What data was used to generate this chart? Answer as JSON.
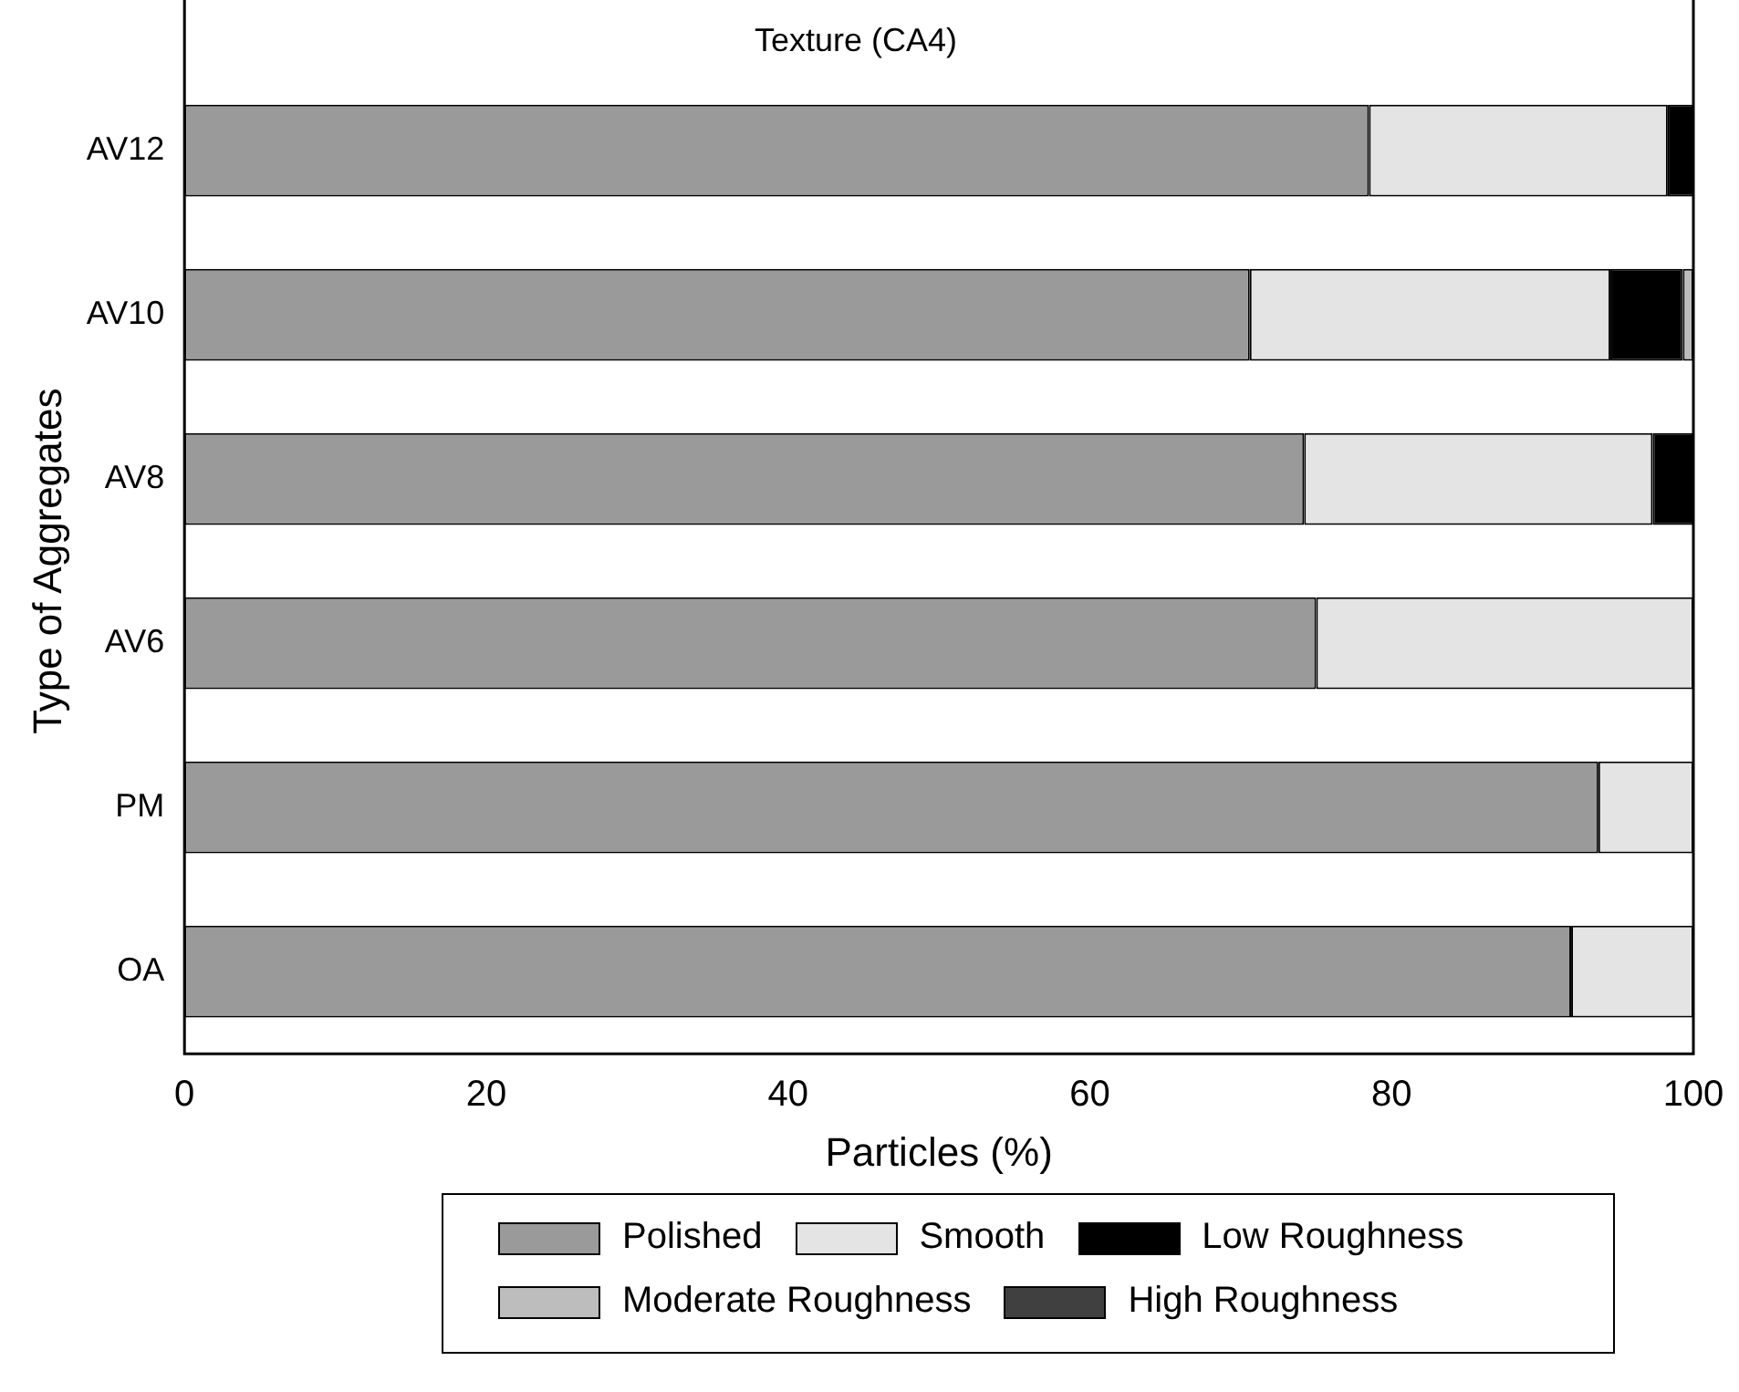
{
  "chart_data": {
    "type": "bar",
    "orientation": "horizontal",
    "stacked": true,
    "title": "Texture (CA4)",
    "xlabel": "Particles (%)",
    "ylabel": "Type of Aggregates",
    "categories": [
      "AV12",
      "AV10",
      "AV8",
      "AV6",
      "PM",
      "OA"
    ],
    "series": [
      {
        "name": "Polished",
        "color": "#9a9a9a",
        "values": [
          78.5,
          70.6,
          74.2,
          75.0,
          93.7,
          91.9
        ]
      },
      {
        "name": "Smooth",
        "color": "#e4e4e4",
        "values": [
          19.8,
          23.9,
          23.1,
          25.0,
          6.3,
          8.1
        ]
      },
      {
        "name": "Low Roughness",
        "color": "#000000",
        "values": [
          1.7,
          4.8,
          2.7,
          null,
          null,
          null
        ]
      },
      {
        "name": "Moderate Roughness",
        "color": "#bdbdbd",
        "values": [
          null,
          0.7,
          null,
          null,
          null,
          null
        ]
      },
      {
        "name": "High Roughness",
        "color": "#404040",
        "values": [
          null,
          null,
          null,
          null,
          null,
          null
        ]
      }
    ],
    "xlim": [
      0,
      100
    ],
    "xticks": [
      0,
      20,
      40,
      60,
      80,
      100
    ],
    "grid": false,
    "legend": "bottom"
  }
}
